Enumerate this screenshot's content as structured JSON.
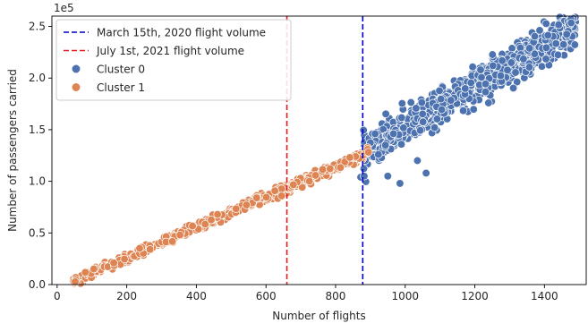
{
  "chart_data": {
    "type": "scatter",
    "title": "",
    "xlabel": "Number of flights",
    "ylabel": "Number of passengers carried",
    "y_scale_label": "1e5",
    "xlim": [
      -15,
      1520
    ],
    "ylim": [
      0,
      2.6
    ],
    "x_ticks": [
      0,
      200,
      400,
      600,
      800,
      1000,
      1200,
      1400
    ],
    "y_ticks": [
      0.0,
      0.5,
      1.0,
      1.5,
      2.0,
      2.5
    ],
    "y_tick_labels": [
      "0.0",
      "0.5",
      "1.0",
      "1.5",
      "2.0",
      "2.5"
    ],
    "grid": false,
    "legend_position": "upper-left",
    "vlines": [
      {
        "name": "March 15th, 2020 flight volume",
        "x": 878,
        "color": "#0000cc",
        "style": "dashed"
      },
      {
        "name": "July 1st, 2021 flight volume",
        "x": 660,
        "color": "#e41a1c",
        "style": "dashed"
      }
    ],
    "series": [
      {
        "name": "Cluster 0",
        "color": "#4c72b0",
        "x_range": [
          880,
          1490
        ],
        "trend": {
          "x0": 880,
          "y0": 1.27,
          "x1": 1490,
          "y1": 2.5
        },
        "spread": 0.15,
        "count": 900,
        "outliers": [
          [
            872,
            1.04
          ],
          [
            882,
            1.05
          ],
          [
            950,
            1.05
          ],
          [
            985,
            0.98
          ],
          [
            1035,
            1.2
          ],
          [
            1060,
            1.08
          ]
        ]
      },
      {
        "name": "Cluster 1",
        "color": "#dd8452",
        "x_range": [
          45,
          895
        ],
        "trend": {
          "x0": 45,
          "y0": 0.03,
          "x1": 895,
          "y1": 1.28
        },
        "spread": 0.04,
        "count": 500,
        "outliers": []
      }
    ]
  }
}
